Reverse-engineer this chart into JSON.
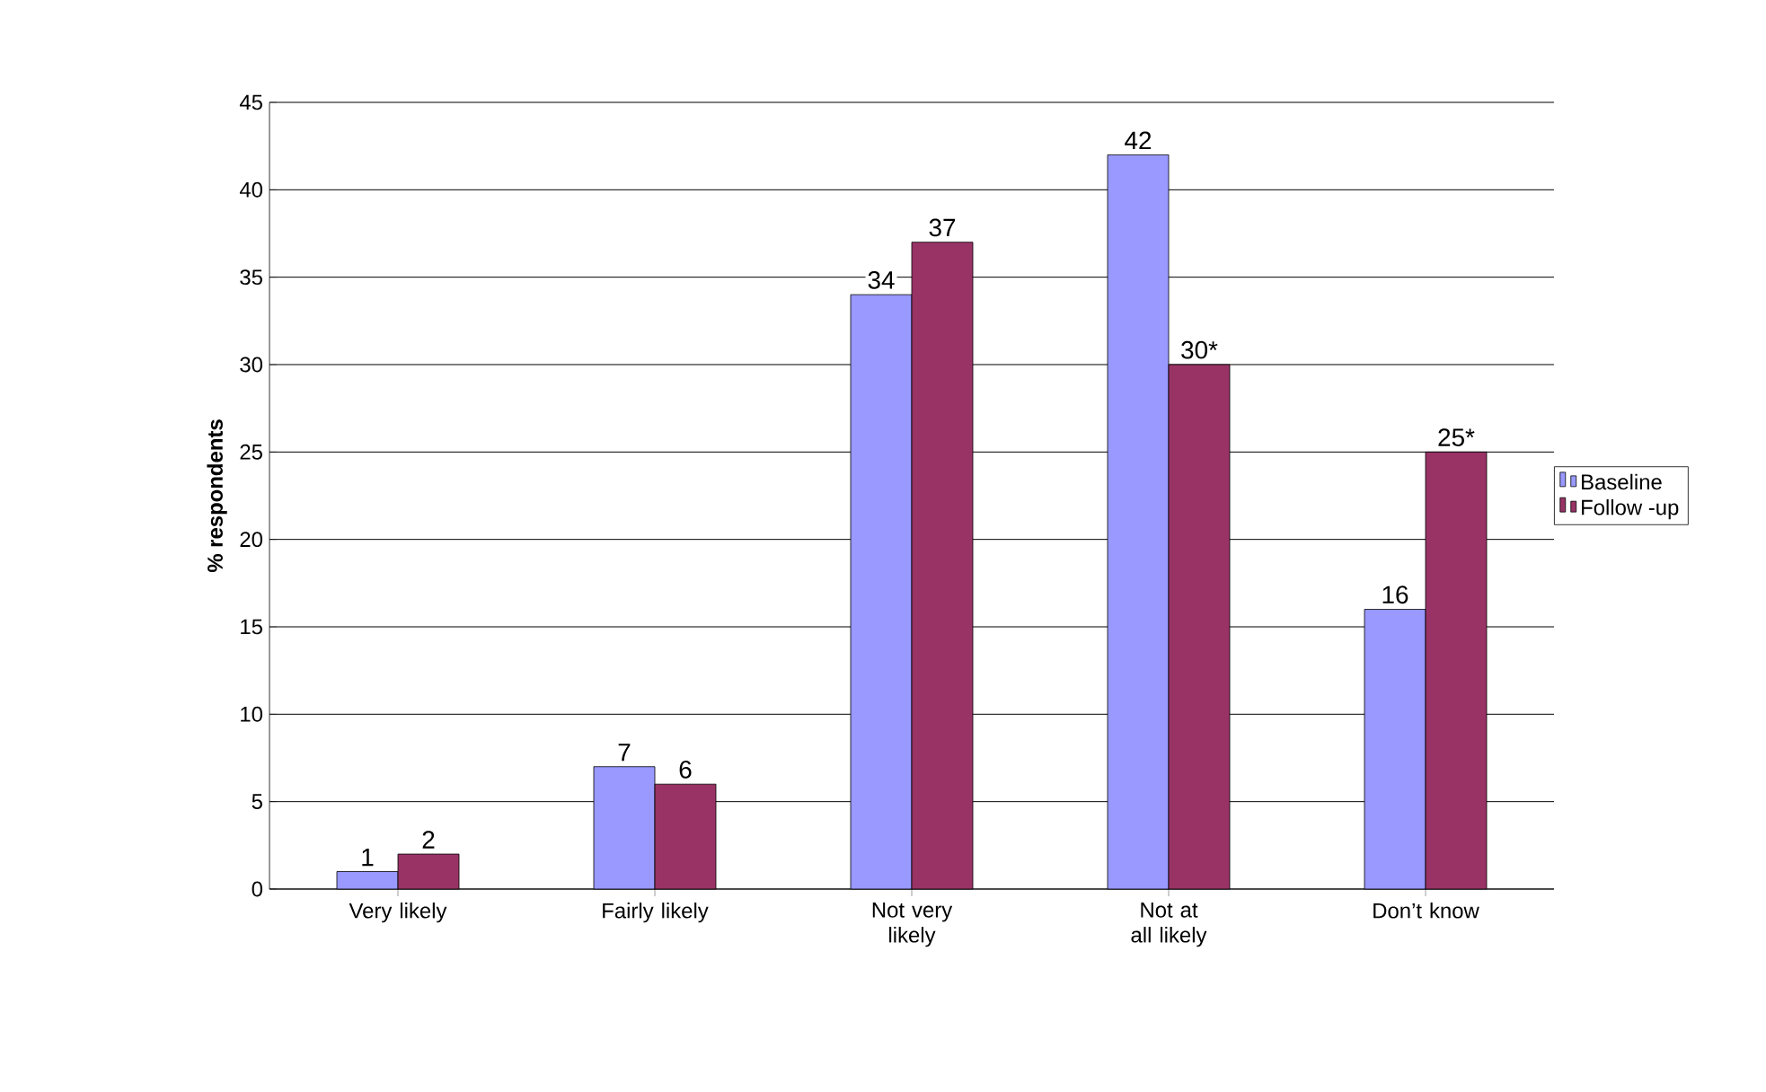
{
  "chart_data": {
    "type": "bar",
    "ylabel": "% respondents",
    "categories": [
      "Very likely",
      "Fairly likely",
      "Not very likely",
      "Not at all likely",
      "Don’t know"
    ],
    "series": [
      {
        "name": "Baseline",
        "color": "#9999ff",
        "values": [
          1,
          7,
          34,
          42,
          16
        ],
        "value_labels": [
          "1",
          "7",
          "34",
          "42",
          "16"
        ]
      },
      {
        "name": "Follow -up",
        "color": "#993366",
        "values": [
          2,
          6,
          37,
          30,
          25
        ],
        "value_labels": [
          "2",
          "6",
          "37",
          "30*",
          "25*"
        ]
      }
    ],
    "ylim": [
      0,
      45
    ],
    "yticks": [
      0,
      5,
      10,
      15,
      20,
      25,
      30,
      35,
      40,
      45
    ],
    "grid": "y",
    "legend": "right"
  }
}
